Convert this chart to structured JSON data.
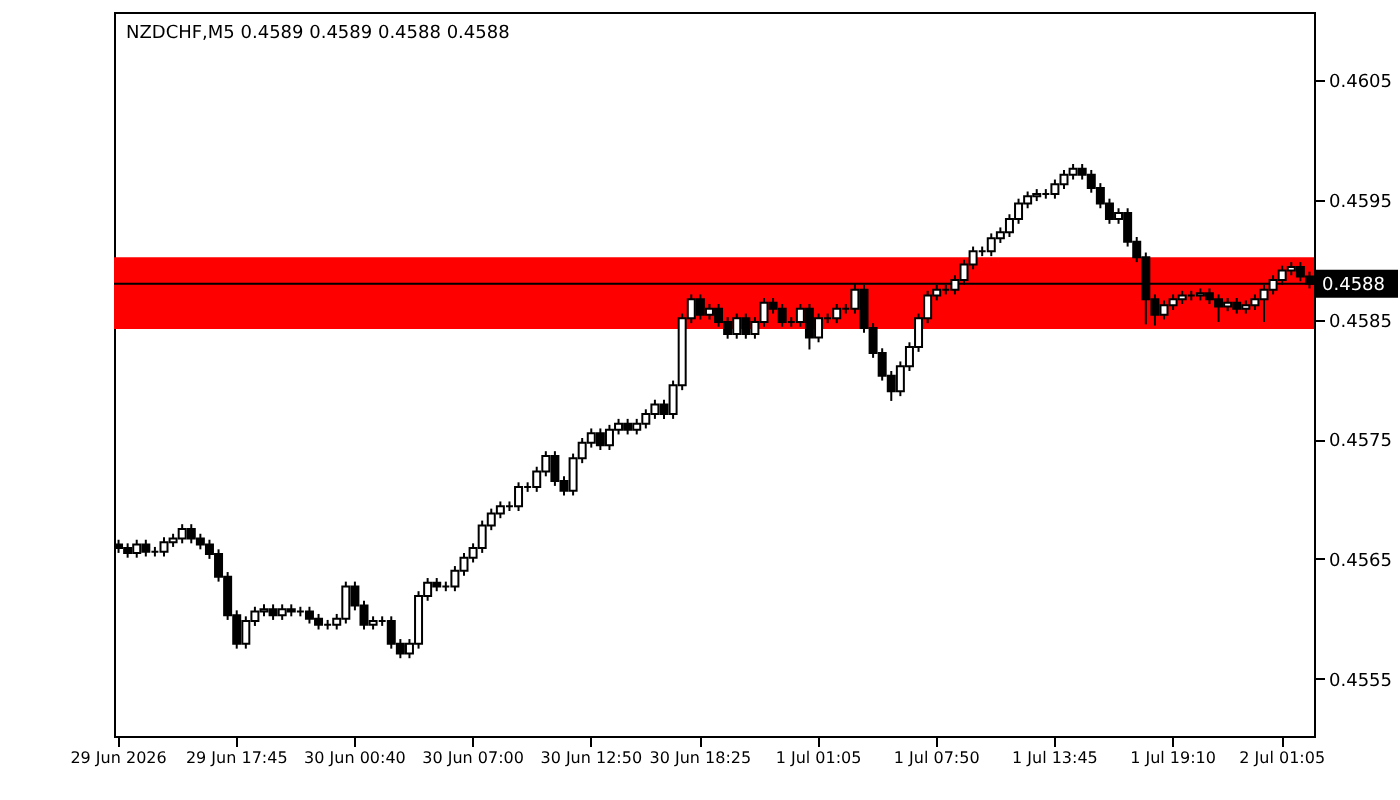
{
  "chart_data": {
    "type": "candlestick",
    "title": "NZDCHF,M5  0.4589 0.4589 0.4588 0.4588",
    "color": "#000000",
    "categories": [
      "29 Jun 2026",
      null,
      null,
      null,
      null,
      null,
      null,
      null,
      null,
      null,
      null,
      null,
      null,
      "29 Jun 17:45",
      null,
      null,
      null,
      null,
      null,
      null,
      null,
      null,
      null,
      null,
      null,
      null,
      "30 Jun 00:40",
      null,
      null,
      null,
      null,
      null,
      null,
      null,
      null,
      null,
      null,
      null,
      null,
      "30 Jun 07:00",
      null,
      null,
      null,
      null,
      null,
      null,
      null,
      null,
      null,
      null,
      null,
      null,
      "30 Jun 12:50",
      null,
      null,
      null,
      null,
      null,
      null,
      null,
      null,
      null,
      null,
      null,
      "30 Jun 18:25",
      null,
      null,
      null,
      null,
      null,
      null,
      null,
      null,
      null,
      null,
      null,
      null,
      "1 Jul 01:05",
      null,
      null,
      null,
      null,
      null,
      null,
      null,
      null,
      null,
      null,
      null,
      null,
      "1 Jul 07:50",
      null,
      null,
      null,
      null,
      null,
      null,
      null,
      null,
      null,
      null,
      null,
      null,
      "1 Jul 13:45",
      null,
      null,
      null,
      null,
      null,
      null,
      null,
      null,
      null,
      null,
      null,
      null,
      "1 Jul 19:10",
      null,
      null,
      null,
      null,
      null,
      null,
      null,
      null,
      null,
      null,
      null,
      "2 Jul 01:05",
      null,
      null,
      null
    ],
    "ohlc": [
      [
        0.45662,
        0.45666,
        0.45655,
        0.45659
      ],
      [
        0.45659,
        0.45663,
        0.45651,
        0.45655
      ],
      [
        0.45655,
        0.45666,
        0.45651,
        0.45662
      ],
      [
        0.45662,
        0.45666,
        0.45652,
        0.45656
      ],
      [
        0.45656,
        0.4566,
        0.45652,
        0.45656
      ],
      [
        0.45656,
        0.45668,
        0.45652,
        0.45664
      ],
      [
        0.45664,
        0.45671,
        0.4566,
        0.45667
      ],
      [
        0.45667,
        0.45679,
        0.45663,
        0.45675
      ],
      [
        0.45675,
        0.45679,
        0.45663,
        0.45667
      ],
      [
        0.45667,
        0.45671,
        0.45658,
        0.45662
      ],
      [
        0.45662,
        0.45666,
        0.4565,
        0.45654
      ],
      [
        0.45654,
        0.45658,
        0.45631,
        0.45635
      ],
      [
        0.45635,
        0.45639,
        0.45599,
        0.45603
      ],
      [
        0.45603,
        0.45607,
        0.45575,
        0.45579
      ],
      [
        0.45579,
        0.45602,
        0.45575,
        0.45598
      ],
      [
        0.45598,
        0.4561,
        0.45594,
        0.45606
      ],
      [
        0.45606,
        0.45612,
        0.45602,
        0.45608
      ],
      [
        0.45608,
        0.45612,
        0.45599,
        0.45603
      ],
      [
        0.45603,
        0.45612,
        0.45599,
        0.45608
      ],
      [
        0.45608,
        0.45612,
        0.45602,
        0.45606
      ],
      [
        0.45606,
        0.4561,
        0.45602,
        0.45606
      ],
      [
        0.45606,
        0.4561,
        0.45596,
        0.456
      ],
      [
        0.456,
        0.45604,
        0.45591,
        0.45595
      ],
      [
        0.45595,
        0.45599,
        0.45591,
        0.45595
      ],
      [
        0.45595,
        0.45604,
        0.45591,
        0.456
      ],
      [
        0.456,
        0.45631,
        0.45596,
        0.45627
      ],
      [
        0.45627,
        0.45631,
        0.45607,
        0.45611
      ],
      [
        0.45611,
        0.45615,
        0.45591,
        0.45595
      ],
      [
        0.45595,
        0.45602,
        0.45591,
        0.45598
      ],
      [
        0.45598,
        0.45602,
        0.45594,
        0.45598
      ],
      [
        0.45598,
        0.45602,
        0.45575,
        0.45579
      ],
      [
        0.45579,
        0.45583,
        0.45567,
        0.45571
      ],
      [
        0.45571,
        0.45583,
        0.45567,
        0.45579
      ],
      [
        0.45579,
        0.45623,
        0.45575,
        0.45619
      ],
      [
        0.45619,
        0.45634,
        0.45615,
        0.4563
      ],
      [
        0.4563,
        0.45634,
        0.45623,
        0.45627
      ],
      [
        0.45627,
        0.45631,
        0.45623,
        0.45627
      ],
      [
        0.45627,
        0.45644,
        0.45623,
        0.4564
      ],
      [
        0.4564,
        0.45655,
        0.45636,
        0.45651
      ],
      [
        0.45651,
        0.45663,
        0.45647,
        0.45659
      ],
      [
        0.45659,
        0.45682,
        0.45655,
        0.45678
      ],
      [
        0.45678,
        0.45692,
        0.45674,
        0.45688
      ],
      [
        0.45688,
        0.45698,
        0.45684,
        0.45694
      ],
      [
        0.45694,
        0.45698,
        0.4569,
        0.45694
      ],
      [
        0.45694,
        0.45714,
        0.4569,
        0.4571
      ],
      [
        0.4571,
        0.45714,
        0.45706,
        0.4571
      ],
      [
        0.4571,
        0.45727,
        0.45706,
        0.45723
      ],
      [
        0.45723,
        0.4574,
        0.45719,
        0.45736
      ],
      [
        0.45736,
        0.4574,
        0.45711,
        0.45715
      ],
      [
        0.45715,
        0.45719,
        0.45703,
        0.45707
      ],
      [
        0.45707,
        0.45738,
        0.45703,
        0.45734
      ],
      [
        0.45734,
        0.45751,
        0.4573,
        0.45747
      ],
      [
        0.45747,
        0.45759,
        0.45743,
        0.45755
      ],
      [
        0.45755,
        0.45759,
        0.45741,
        0.45745
      ],
      [
        0.45745,
        0.45762,
        0.45741,
        0.45758
      ],
      [
        0.45758,
        0.45767,
        0.45754,
        0.45763
      ],
      [
        0.45763,
        0.45767,
        0.45754,
        0.45758
      ],
      [
        0.45758,
        0.45767,
        0.45754,
        0.45763
      ],
      [
        0.45763,
        0.45775,
        0.45759,
        0.45771
      ],
      [
        0.45771,
        0.45783,
        0.45767,
        0.45779
      ],
      [
        0.45779,
        0.45783,
        0.45767,
        0.45771
      ],
      [
        0.45771,
        0.45799,
        0.45767,
        0.45795
      ],
      [
        0.45795,
        0.45855,
        0.45791,
        0.45851
      ],
      [
        0.45851,
        0.45871,
        0.45847,
        0.45867
      ],
      [
        0.45867,
        0.45871,
        0.4585,
        0.45854
      ],
      [
        0.45854,
        0.45863,
        0.4585,
        0.45859
      ],
      [
        0.45859,
        0.45863,
        0.45844,
        0.45848
      ],
      [
        0.45848,
        0.45852,
        0.45834,
        0.45838
      ],
      [
        0.45838,
        0.45855,
        0.45834,
        0.45851
      ],
      [
        0.45851,
        0.45855,
        0.45834,
        0.45838
      ],
      [
        0.45838,
        0.45852,
        0.45834,
        0.45848
      ],
      [
        0.45848,
        0.45868,
        0.45844,
        0.45864
      ],
      [
        0.45864,
        0.45868,
        0.45855,
        0.45859
      ],
      [
        0.45859,
        0.45863,
        0.45844,
        0.45848
      ],
      [
        0.45848,
        0.45852,
        0.45844,
        0.45848
      ],
      [
        0.45848,
        0.45863,
        0.45844,
        0.45859
      ],
      [
        0.45859,
        0.45863,
        0.45825,
        0.45835
      ],
      [
        0.45835,
        0.45855,
        0.45831,
        0.45851
      ],
      [
        0.45851,
        0.45855,
        0.45847,
        0.45851
      ],
      [
        0.45851,
        0.45863,
        0.45847,
        0.45859
      ],
      [
        0.45859,
        0.45863,
        0.45855,
        0.45859
      ],
      [
        0.45859,
        0.4588,
        0.45855,
        0.45875
      ],
      [
        0.45875,
        0.45879,
        0.45839,
        0.45843
      ],
      [
        0.45843,
        0.45847,
        0.45818,
        0.45822
      ],
      [
        0.45822,
        0.45826,
        0.45799,
        0.45803
      ],
      [
        0.45803,
        0.45807,
        0.45782,
        0.4579
      ],
      [
        0.4579,
        0.45815,
        0.45786,
        0.45811
      ],
      [
        0.45811,
        0.45831,
        0.45807,
        0.45827
      ],
      [
        0.45827,
        0.45855,
        0.45823,
        0.45851
      ],
      [
        0.45851,
        0.45874,
        0.45847,
        0.4587
      ],
      [
        0.4587,
        0.45879,
        0.45866,
        0.45875
      ],
      [
        0.45875,
        0.45879,
        0.45871,
        0.45875
      ],
      [
        0.45875,
        0.45887,
        0.45871,
        0.45883
      ],
      [
        0.45883,
        0.459,
        0.45879,
        0.45896
      ],
      [
        0.45896,
        0.45911,
        0.45892,
        0.45907
      ],
      [
        0.45907,
        0.45911,
        0.45903,
        0.45907
      ],
      [
        0.45907,
        0.45922,
        0.45903,
        0.45918
      ],
      [
        0.45918,
        0.45927,
        0.45914,
        0.45923
      ],
      [
        0.45923,
        0.45938,
        0.45919,
        0.45934
      ],
      [
        0.45934,
        0.45951,
        0.4593,
        0.45947
      ],
      [
        0.45947,
        0.45957,
        0.45943,
        0.45953
      ],
      [
        0.45953,
        0.45959,
        0.45949,
        0.45955
      ],
      [
        0.45955,
        0.45959,
        0.45951,
        0.45955
      ],
      [
        0.45955,
        0.45967,
        0.45951,
        0.45963
      ],
      [
        0.45963,
        0.45975,
        0.45959,
        0.45971
      ],
      [
        0.45971,
        0.4598,
        0.45967,
        0.45976
      ],
      [
        0.45976,
        0.4598,
        0.45967,
        0.45971
      ],
      [
        0.45971,
        0.45975,
        0.45956,
        0.4596
      ],
      [
        0.4596,
        0.45964,
        0.45943,
        0.45947
      ],
      [
        0.45947,
        0.45951,
        0.4593,
        0.45934
      ],
      [
        0.45934,
        0.45943,
        0.4593,
        0.45939
      ],
      [
        0.45939,
        0.45943,
        0.45911,
        0.45915
      ],
      [
        0.45915,
        0.45919,
        0.45898,
        0.45902
      ],
      [
        0.45902,
        0.45906,
        0.45846,
        0.45867
      ],
      [
        0.45867,
        0.45871,
        0.45845,
        0.45854
      ],
      [
        0.45854,
        0.45866,
        0.4585,
        0.45862
      ],
      [
        0.45862,
        0.45871,
        0.45858,
        0.45867
      ],
      [
        0.45867,
        0.45874,
        0.45863,
        0.4587
      ],
      [
        0.4587,
        0.45874,
        0.45866,
        0.4587
      ],
      [
        0.4587,
        0.45876,
        0.45866,
        0.45872
      ],
      [
        0.45872,
        0.45876,
        0.45863,
        0.45867
      ],
      [
        0.45867,
        0.45871,
        0.45848,
        0.45861
      ],
      [
        0.45861,
        0.45868,
        0.45857,
        0.45864
      ],
      [
        0.45864,
        0.45868,
        0.45855,
        0.45859
      ],
      [
        0.45859,
        0.45866,
        0.45855,
        0.45862
      ],
      [
        0.45862,
        0.45871,
        0.45858,
        0.45867
      ],
      [
        0.45867,
        0.45879,
        0.45848,
        0.45875
      ],
      [
        0.45875,
        0.45887,
        0.45871,
        0.45883
      ],
      [
        0.45883,
        0.45895,
        0.45879,
        0.45891
      ],
      [
        0.45891,
        0.45898,
        0.45887,
        0.45894
      ],
      [
        0.45894,
        0.45898,
        0.45882,
        0.45886
      ],
      [
        0.45886,
        0.4589,
        0.45876,
        0.4588
      ]
    ],
    "bands": [
      {
        "axis": "y",
        "from": 0.45842,
        "to": 0.45902,
        "color": "#ff0000"
      }
    ],
    "ref_lines": [
      {
        "axis": "y",
        "value": 0.4588,
        "label": "0.4588",
        "color": "#000000"
      }
    ],
    "ylim": [
      0.45502,
      0.46107
    ],
    "yticks": [
      0.4555,
      0.4565,
      0.4575,
      0.4585,
      0.4595,
      0.4605
    ]
  }
}
